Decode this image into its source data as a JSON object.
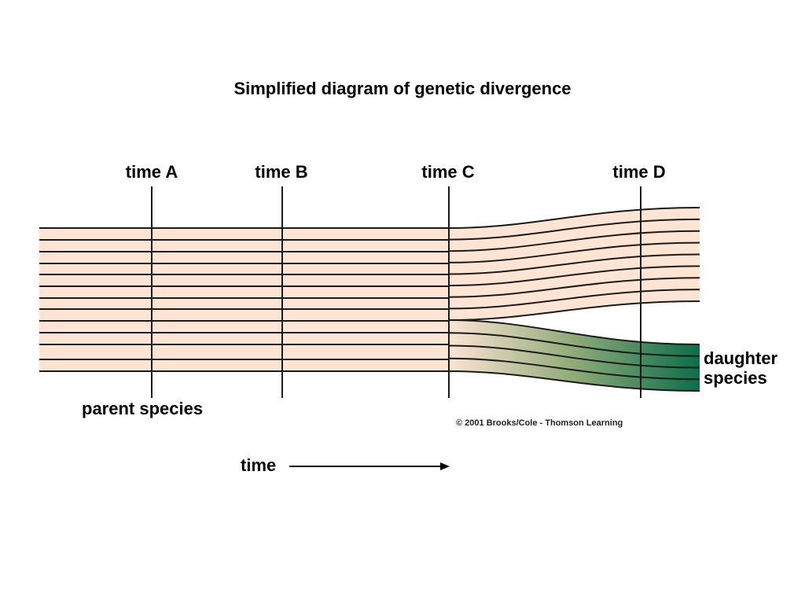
{
  "title": "Simplified diagram of genetic divergence",
  "time_markers": [
    "time A",
    "time B",
    "time C",
    "time D"
  ],
  "labels": {
    "parent": "parent species",
    "daughter_line1": "daughter",
    "daughter_line2": "species",
    "time": "time"
  },
  "copyright": "© 2001 Brooks/Cole - Thomson Learning",
  "colors": {
    "parent_fill": "#fde4d3",
    "daughter_start": "#fde4d3",
    "daughter_mid": "#8faa78",
    "daughter_end": "#0b6e4a",
    "lines": "#1a1a1a"
  }
}
